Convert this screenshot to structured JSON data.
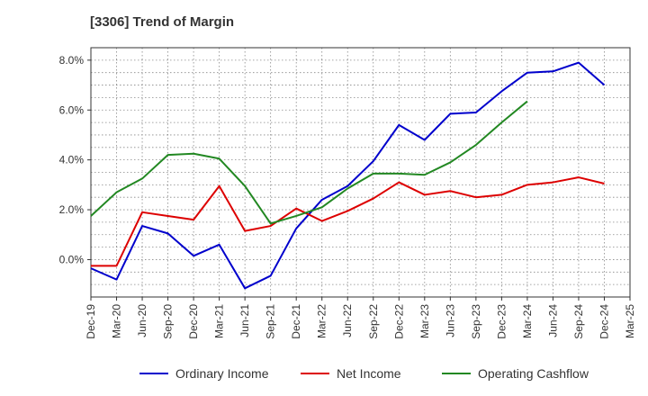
{
  "chart_data": {
    "type": "line",
    "title": "[3306]  Trend of Margin",
    "xlabel": "",
    "ylabel": "",
    "categories": [
      "Dec-19",
      "Mar-20",
      "Jun-20",
      "Sep-20",
      "Dec-20",
      "Mar-21",
      "Jun-21",
      "Sep-21",
      "Dec-21",
      "Mar-22",
      "Jun-22",
      "Sep-22",
      "Dec-22",
      "Mar-23",
      "Jun-23",
      "Sep-23",
      "Dec-23",
      "Mar-24",
      "Jun-24",
      "Sep-24",
      "Dec-24",
      "Mar-25"
    ],
    "ylim": [
      -1.5,
      8.5
    ],
    "yticks": [
      0,
      2,
      4,
      6,
      8
    ],
    "ytick_labels": [
      "0.0%",
      "2.0%",
      "4.0%",
      "6.0%",
      "8.0%"
    ],
    "grid": true,
    "legend_position": "bottom",
    "series": [
      {
        "name": "Ordinary Income",
        "color": "#0000cc",
        "values": [
          -0.35,
          -0.8,
          1.35,
          1.05,
          0.15,
          0.6,
          -1.15,
          -0.65,
          1.25,
          2.4,
          2.95,
          3.95,
          5.4,
          4.8,
          5.85,
          5.9,
          6.75,
          7.5,
          7.55,
          7.9,
          7.0,
          null
        ]
      },
      {
        "name": "Net Income",
        "color": "#dd0000",
        "values": [
          -0.25,
          -0.25,
          1.9,
          1.75,
          1.6,
          2.95,
          1.15,
          1.35,
          2.05,
          1.55,
          1.95,
          2.45,
          3.1,
          2.6,
          2.75,
          2.5,
          2.6,
          3.0,
          3.1,
          3.3,
          3.05,
          null
        ]
      },
      {
        "name": "Operating Cashflow",
        "color": "#228822",
        "values": [
          1.75,
          2.7,
          3.25,
          4.2,
          4.25,
          4.05,
          2.95,
          1.45,
          1.75,
          2.1,
          2.85,
          3.45,
          3.45,
          3.4,
          3.9,
          4.6,
          5.5,
          6.35,
          null,
          null,
          null,
          null
        ]
      }
    ]
  }
}
